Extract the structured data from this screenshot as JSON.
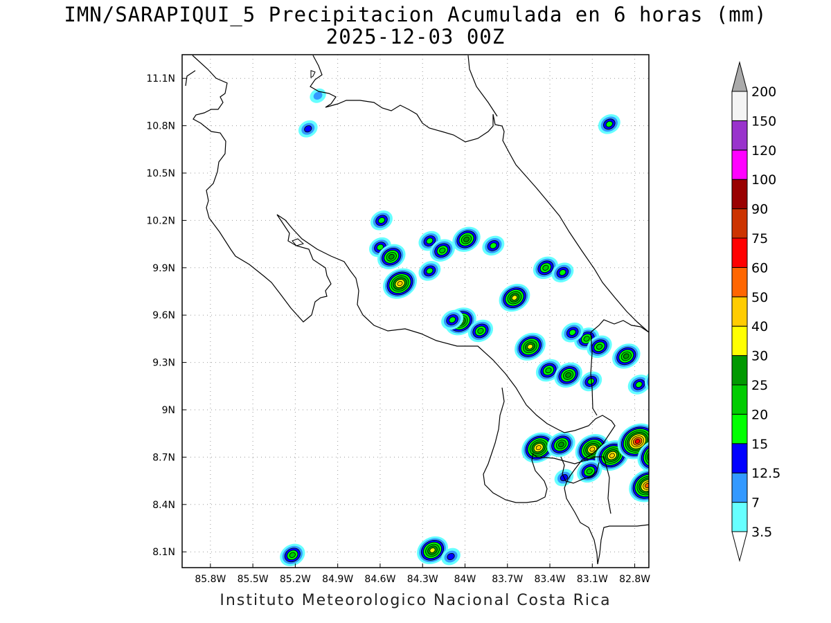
{
  "title": {
    "line1": "IMN/SARAPIQUI_5 Precipitacion Acumulada en 6 horas (mm)",
    "line2": "2025-12-03 00Z"
  },
  "footer": "Instituto Meteorologico Nacional Costa Rica",
  "map": {
    "lon_range": [
      -86.0,
      -82.7
    ],
    "lat_range": [
      8.0,
      11.25
    ],
    "lon_ticks": [
      {
        "value": -85.8,
        "label": "85.8W"
      },
      {
        "value": -85.5,
        "label": "85.5W"
      },
      {
        "value": -85.2,
        "label": "85.2W"
      },
      {
        "value": -84.9,
        "label": "84.9W"
      },
      {
        "value": -84.6,
        "label": "84.6W"
      },
      {
        "value": -84.3,
        "label": "84.3W"
      },
      {
        "value": -84.0,
        "label": "84W"
      },
      {
        "value": -83.7,
        "label": "83.7W"
      },
      {
        "value": -83.4,
        "label": "83.4W"
      },
      {
        "value": -83.1,
        "label": "83.1W"
      },
      {
        "value": -82.8,
        "label": "82.8W"
      }
    ],
    "lat_ticks": [
      {
        "value": 11.1,
        "label": "11.1N"
      },
      {
        "value": 10.8,
        "label": "10.8N"
      },
      {
        "value": 10.5,
        "label": "10.5N"
      },
      {
        "value": 10.2,
        "label": "10.2N"
      },
      {
        "value": 9.9,
        "label": "9.9N"
      },
      {
        "value": 9.6,
        "label": "9.6N"
      },
      {
        "value": 9.3,
        "label": "9.3N"
      },
      {
        "value": 9.0,
        "label": "9N"
      },
      {
        "value": 8.7,
        "label": "8.7N"
      },
      {
        "value": 8.4,
        "label": "8.4N"
      },
      {
        "value": 8.1,
        "label": "8.1N"
      }
    ],
    "grid": "dotted"
  },
  "colorbar": {
    "levels": [
      "3.5",
      "7",
      "12.5",
      "15",
      "20",
      "25",
      "30",
      "40",
      "50",
      "60",
      "75",
      "90",
      "100",
      "120",
      "150",
      "200"
    ],
    "colors": [
      "#66ffff",
      "#3399ff",
      "#0000ff",
      "#00ff00",
      "#00cc00",
      "#009900",
      "#ffff00",
      "#ffcc00",
      "#ff6600",
      "#ff0000",
      "#cc3300",
      "#990000",
      "#ff00ff",
      "#9933cc",
      "#f4f4f4",
      "#aaaaaa"
    ],
    "extend": "both"
  },
  "precip_cells": [
    {
      "lon": -85.22,
      "lat": 8.08,
      "max_mm": 20
    },
    {
      "lon": -84.23,
      "lat": 8.11,
      "max_mm": 30
    },
    {
      "lon": -84.1,
      "lat": 8.07,
      "max_mm": 12.5
    },
    {
      "lon": -85.04,
      "lat": 10.99,
      "max_mm": 7
    },
    {
      "lon": -85.11,
      "lat": 10.78,
      "max_mm": 12.5
    },
    {
      "lon": -82.98,
      "lat": 10.81,
      "max_mm": 15
    },
    {
      "lon": -84.59,
      "lat": 10.2,
      "max_mm": 15
    },
    {
      "lon": -84.6,
      "lat": 10.03,
      "max_mm": 15
    },
    {
      "lon": -84.52,
      "lat": 9.97,
      "max_mm": 25
    },
    {
      "lon": -84.46,
      "lat": 9.8,
      "max_mm": 40
    },
    {
      "lon": -84.25,
      "lat": 10.07,
      "max_mm": 15
    },
    {
      "lon": -84.16,
      "lat": 10.01,
      "max_mm": 20
    },
    {
      "lon": -84.25,
      "lat": 9.88,
      "max_mm": 15
    },
    {
      "lon": -83.99,
      "lat": 10.08,
      "max_mm": 25
    },
    {
      "lon": -83.8,
      "lat": 10.04,
      "max_mm": 15
    },
    {
      "lon": -83.43,
      "lat": 9.9,
      "max_mm": 20
    },
    {
      "lon": -83.31,
      "lat": 9.87,
      "max_mm": 15
    },
    {
      "lon": -83.65,
      "lat": 9.71,
      "max_mm": 30
    },
    {
      "lon": -84.03,
      "lat": 9.56,
      "max_mm": 30
    },
    {
      "lon": -83.89,
      "lat": 9.5,
      "max_mm": 20
    },
    {
      "lon": -84.09,
      "lat": 9.57,
      "max_mm": 15
    },
    {
      "lon": -83.54,
      "lat": 9.4,
      "max_mm": 30
    },
    {
      "lon": -83.14,
      "lat": 9.45,
      "max_mm": 20
    },
    {
      "lon": -83.05,
      "lat": 9.4,
      "max_mm": 20
    },
    {
      "lon": -83.24,
      "lat": 9.49,
      "max_mm": 15
    },
    {
      "lon": -82.86,
      "lat": 9.34,
      "max_mm": 25
    },
    {
      "lon": -83.41,
      "lat": 9.25,
      "max_mm": 20
    },
    {
      "lon": -83.27,
      "lat": 9.22,
      "max_mm": 25
    },
    {
      "lon": -83.11,
      "lat": 9.18,
      "max_mm": 15
    },
    {
      "lon": -82.77,
      "lat": 9.16,
      "max_mm": 15
    },
    {
      "lon": -82.63,
      "lat": 9.19,
      "max_mm": 25
    },
    {
      "lon": -83.48,
      "lat": 8.76,
      "max_mm": 40
    },
    {
      "lon": -83.32,
      "lat": 8.78,
      "max_mm": 25
    },
    {
      "lon": -83.1,
      "lat": 8.75,
      "max_mm": 40
    },
    {
      "lon": -82.96,
      "lat": 8.71,
      "max_mm": 40
    },
    {
      "lon": -82.78,
      "lat": 8.8,
      "max_mm": 60
    },
    {
      "lon": -82.65,
      "lat": 8.71,
      "max_mm": 50
    },
    {
      "lon": -82.71,
      "lat": 8.52,
      "max_mm": 50
    },
    {
      "lon": -83.12,
      "lat": 8.61,
      "max_mm": 20
    },
    {
      "lon": -83.3,
      "lat": 8.57,
      "max_mm": 12.5
    }
  ]
}
